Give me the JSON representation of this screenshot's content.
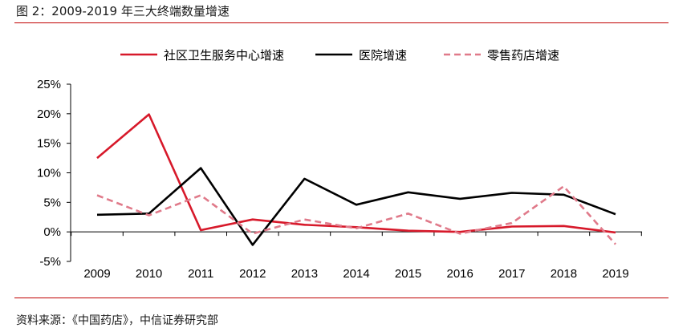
{
  "title": "图 2：2009-2019 年三大终端数量增速",
  "source": "资料来源：《中国药店》，中信证券研究部",
  "chart_data": {
    "type": "line",
    "x": [
      "2009",
      "2010",
      "2011",
      "2012",
      "2013",
      "2014",
      "2015",
      "2016",
      "2017",
      "2018",
      "2019"
    ],
    "y_ticks": [
      "25%",
      "20%",
      "15%",
      "10%",
      "5%",
      "0%",
      "-5%"
    ],
    "ylim": [
      -5,
      25
    ],
    "legend_position": "top",
    "series": [
      {
        "name": "社区卫生服务中心增速",
        "color": "#d7192a",
        "dash": "solid",
        "values": [
          12.5,
          19.9,
          0.3,
          2.1,
          1.2,
          0.8,
          0.2,
          0.0,
          0.9,
          1.0,
          -0.1
        ]
      },
      {
        "name": "医院增速",
        "color": "#000000",
        "dash": "solid",
        "values": [
          2.9,
          3.1,
          10.8,
          -2.2,
          9.0,
          4.6,
          6.7,
          5.6,
          6.6,
          6.3,
          3.0
        ]
      },
      {
        "name": "零售药店增速",
        "color": "#e07a8a",
        "dash": "dashed",
        "values": [
          6.2,
          2.8,
          6.2,
          -0.3,
          2.1,
          0.6,
          3.1,
          -0.3,
          1.5,
          7.7,
          -2.1
        ]
      }
    ]
  }
}
